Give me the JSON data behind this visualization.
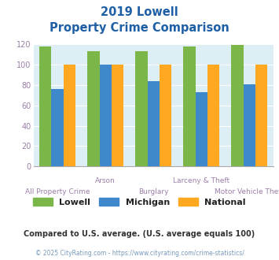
{
  "title_line1": "2019 Lowell",
  "title_line2": "Property Crime Comparison",
  "categories": [
    "All Property Crime",
    "Arson",
    "Burglary",
    "Larceny & Theft",
    "Motor Vehicle Theft"
  ],
  "lowell": [
    118,
    113,
    113,
    118,
    119
  ],
  "michigan": [
    76,
    100,
    84,
    73,
    81
  ],
  "national": [
    100,
    100,
    100,
    100,
    100
  ],
  "lowell_color": "#7ab648",
  "michigan_color": "#4088cc",
  "national_color": "#ffa820",
  "title_color": "#1f5fa6",
  "xlabel_color": "#9b7fa8",
  "ylabel_color": "#9b7fa8",
  "footnote1": "Compared to U.S. average. (U.S. average equals 100)",
  "footnote2": "© 2025 CityRating.com - https://www.cityrating.com/crime-statistics/",
  "footnote1_color": "#333333",
  "footnote2_color": "#7799bb",
  "bg_color": "#ddeef4",
  "ylim": [
    0,
    120
  ],
  "yticks": [
    0,
    20,
    40,
    60,
    80,
    100,
    120
  ],
  "bar_width": 0.25
}
